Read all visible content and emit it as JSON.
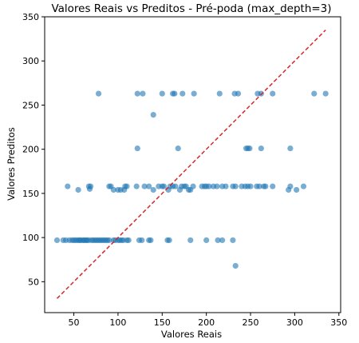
{
  "chart_data": {
    "type": "scatter",
    "title": "Valores Reais vs Preditos - Pré-poda (max_depth=3)",
    "xlabel": "Valores Reais",
    "ylabel": "Valores Preditos",
    "xlim": [
      17,
      352
    ],
    "ylim": [
      15,
      350
    ],
    "xticks": [
      50,
      100,
      150,
      200,
      250,
      300,
      350
    ],
    "yticks": [
      50,
      100,
      150,
      200,
      250,
      300,
      350
    ],
    "grid": false,
    "point_color": "#1f77b4",
    "line_color": "#d62728",
    "reference_line": {
      "x": [
        31,
        335
      ],
      "y": [
        31,
        335
      ],
      "style": "dashed"
    },
    "series": [
      {
        "points": [
          [
            31,
            97
          ],
          [
            38,
            97
          ],
          [
            41,
            97
          ],
          [
            45,
            97
          ],
          [
            48,
            97
          ],
          [
            50,
            97
          ],
          [
            52,
            97
          ],
          [
            54,
            97
          ],
          [
            56,
            97
          ],
          [
            57,
            97
          ],
          [
            59,
            97
          ],
          [
            61,
            97
          ],
          [
            62,
            97
          ],
          [
            64,
            97
          ],
          [
            65,
            97
          ],
          [
            67,
            97
          ],
          [
            70,
            97
          ],
          [
            72,
            97
          ],
          [
            74,
            97
          ],
          [
            76,
            97
          ],
          [
            78,
            97
          ],
          [
            80,
            97
          ],
          [
            82,
            97
          ],
          [
            84,
            97
          ],
          [
            86,
            97
          ],
          [
            88,
            97
          ],
          [
            90,
            97
          ],
          [
            95,
            97
          ],
          [
            97,
            97
          ],
          [
            100,
            97
          ],
          [
            102,
            97
          ],
          [
            104,
            97
          ],
          [
            106,
            97
          ],
          [
            110,
            97
          ],
          [
            112,
            97
          ],
          [
            124,
            97
          ],
          [
            127,
            97
          ],
          [
            135,
            97
          ],
          [
            137,
            97
          ],
          [
            156,
            97
          ],
          [
            158,
            97
          ],
          [
            182,
            97
          ],
          [
            200,
            97
          ],
          [
            213,
            97
          ],
          [
            218,
            97
          ],
          [
            230,
            97
          ],
          [
            233,
            68
          ],
          [
            43,
            158
          ],
          [
            55,
            154
          ],
          [
            67,
            158
          ],
          [
            68,
            155
          ],
          [
            69,
            158
          ],
          [
            90,
            158
          ],
          [
            92,
            158
          ],
          [
            95,
            154
          ],
          [
            100,
            154
          ],
          [
            103,
            154
          ],
          [
            107,
            154
          ],
          [
            108,
            158
          ],
          [
            110,
            158
          ],
          [
            121,
            158
          ],
          [
            130,
            158
          ],
          [
            135,
            158
          ],
          [
            140,
            154
          ],
          [
            146,
            158
          ],
          [
            150,
            158
          ],
          [
            152,
            158
          ],
          [
            157,
            154
          ],
          [
            159,
            158
          ],
          [
            162,
            158
          ],
          [
            165,
            158
          ],
          [
            170,
            154
          ],
          [
            172,
            158
          ],
          [
            175,
            158
          ],
          [
            177,
            158
          ],
          [
            180,
            154
          ],
          [
            182,
            154
          ],
          [
            185,
            158
          ],
          [
            195,
            158
          ],
          [
            198,
            158
          ],
          [
            200,
            158
          ],
          [
            203,
            158
          ],
          [
            208,
            158
          ],
          [
            212,
            158
          ],
          [
            218,
            158
          ],
          [
            222,
            158
          ],
          [
            230,
            158
          ],
          [
            233,
            158
          ],
          [
            240,
            158
          ],
          [
            244,
            158
          ],
          [
            247,
            158
          ],
          [
            250,
            158
          ],
          [
            257,
            158
          ],
          [
            260,
            158
          ],
          [
            265,
            158
          ],
          [
            267,
            158
          ],
          [
            275,
            158
          ],
          [
            293,
            154
          ],
          [
            295,
            158
          ],
          [
            302,
            154
          ],
          [
            310,
            158
          ],
          [
            122,
            201
          ],
          [
            168,
            201
          ],
          [
            245,
            201
          ],
          [
            247,
            201
          ],
          [
            249,
            201
          ],
          [
            262,
            201
          ],
          [
            295,
            201
          ],
          [
            140,
            239
          ],
          [
            78,
            263
          ],
          [
            122,
            263
          ],
          [
            128,
            263
          ],
          [
            150,
            263
          ],
          [
            162,
            263
          ],
          [
            164,
            263
          ],
          [
            173,
            263
          ],
          [
            186,
            263
          ],
          [
            215,
            263
          ],
          [
            232,
            263
          ],
          [
            236,
            263
          ],
          [
            258,
            263
          ],
          [
            262,
            263
          ],
          [
            275,
            263
          ],
          [
            322,
            263
          ],
          [
            335,
            263
          ]
        ]
      }
    ]
  }
}
